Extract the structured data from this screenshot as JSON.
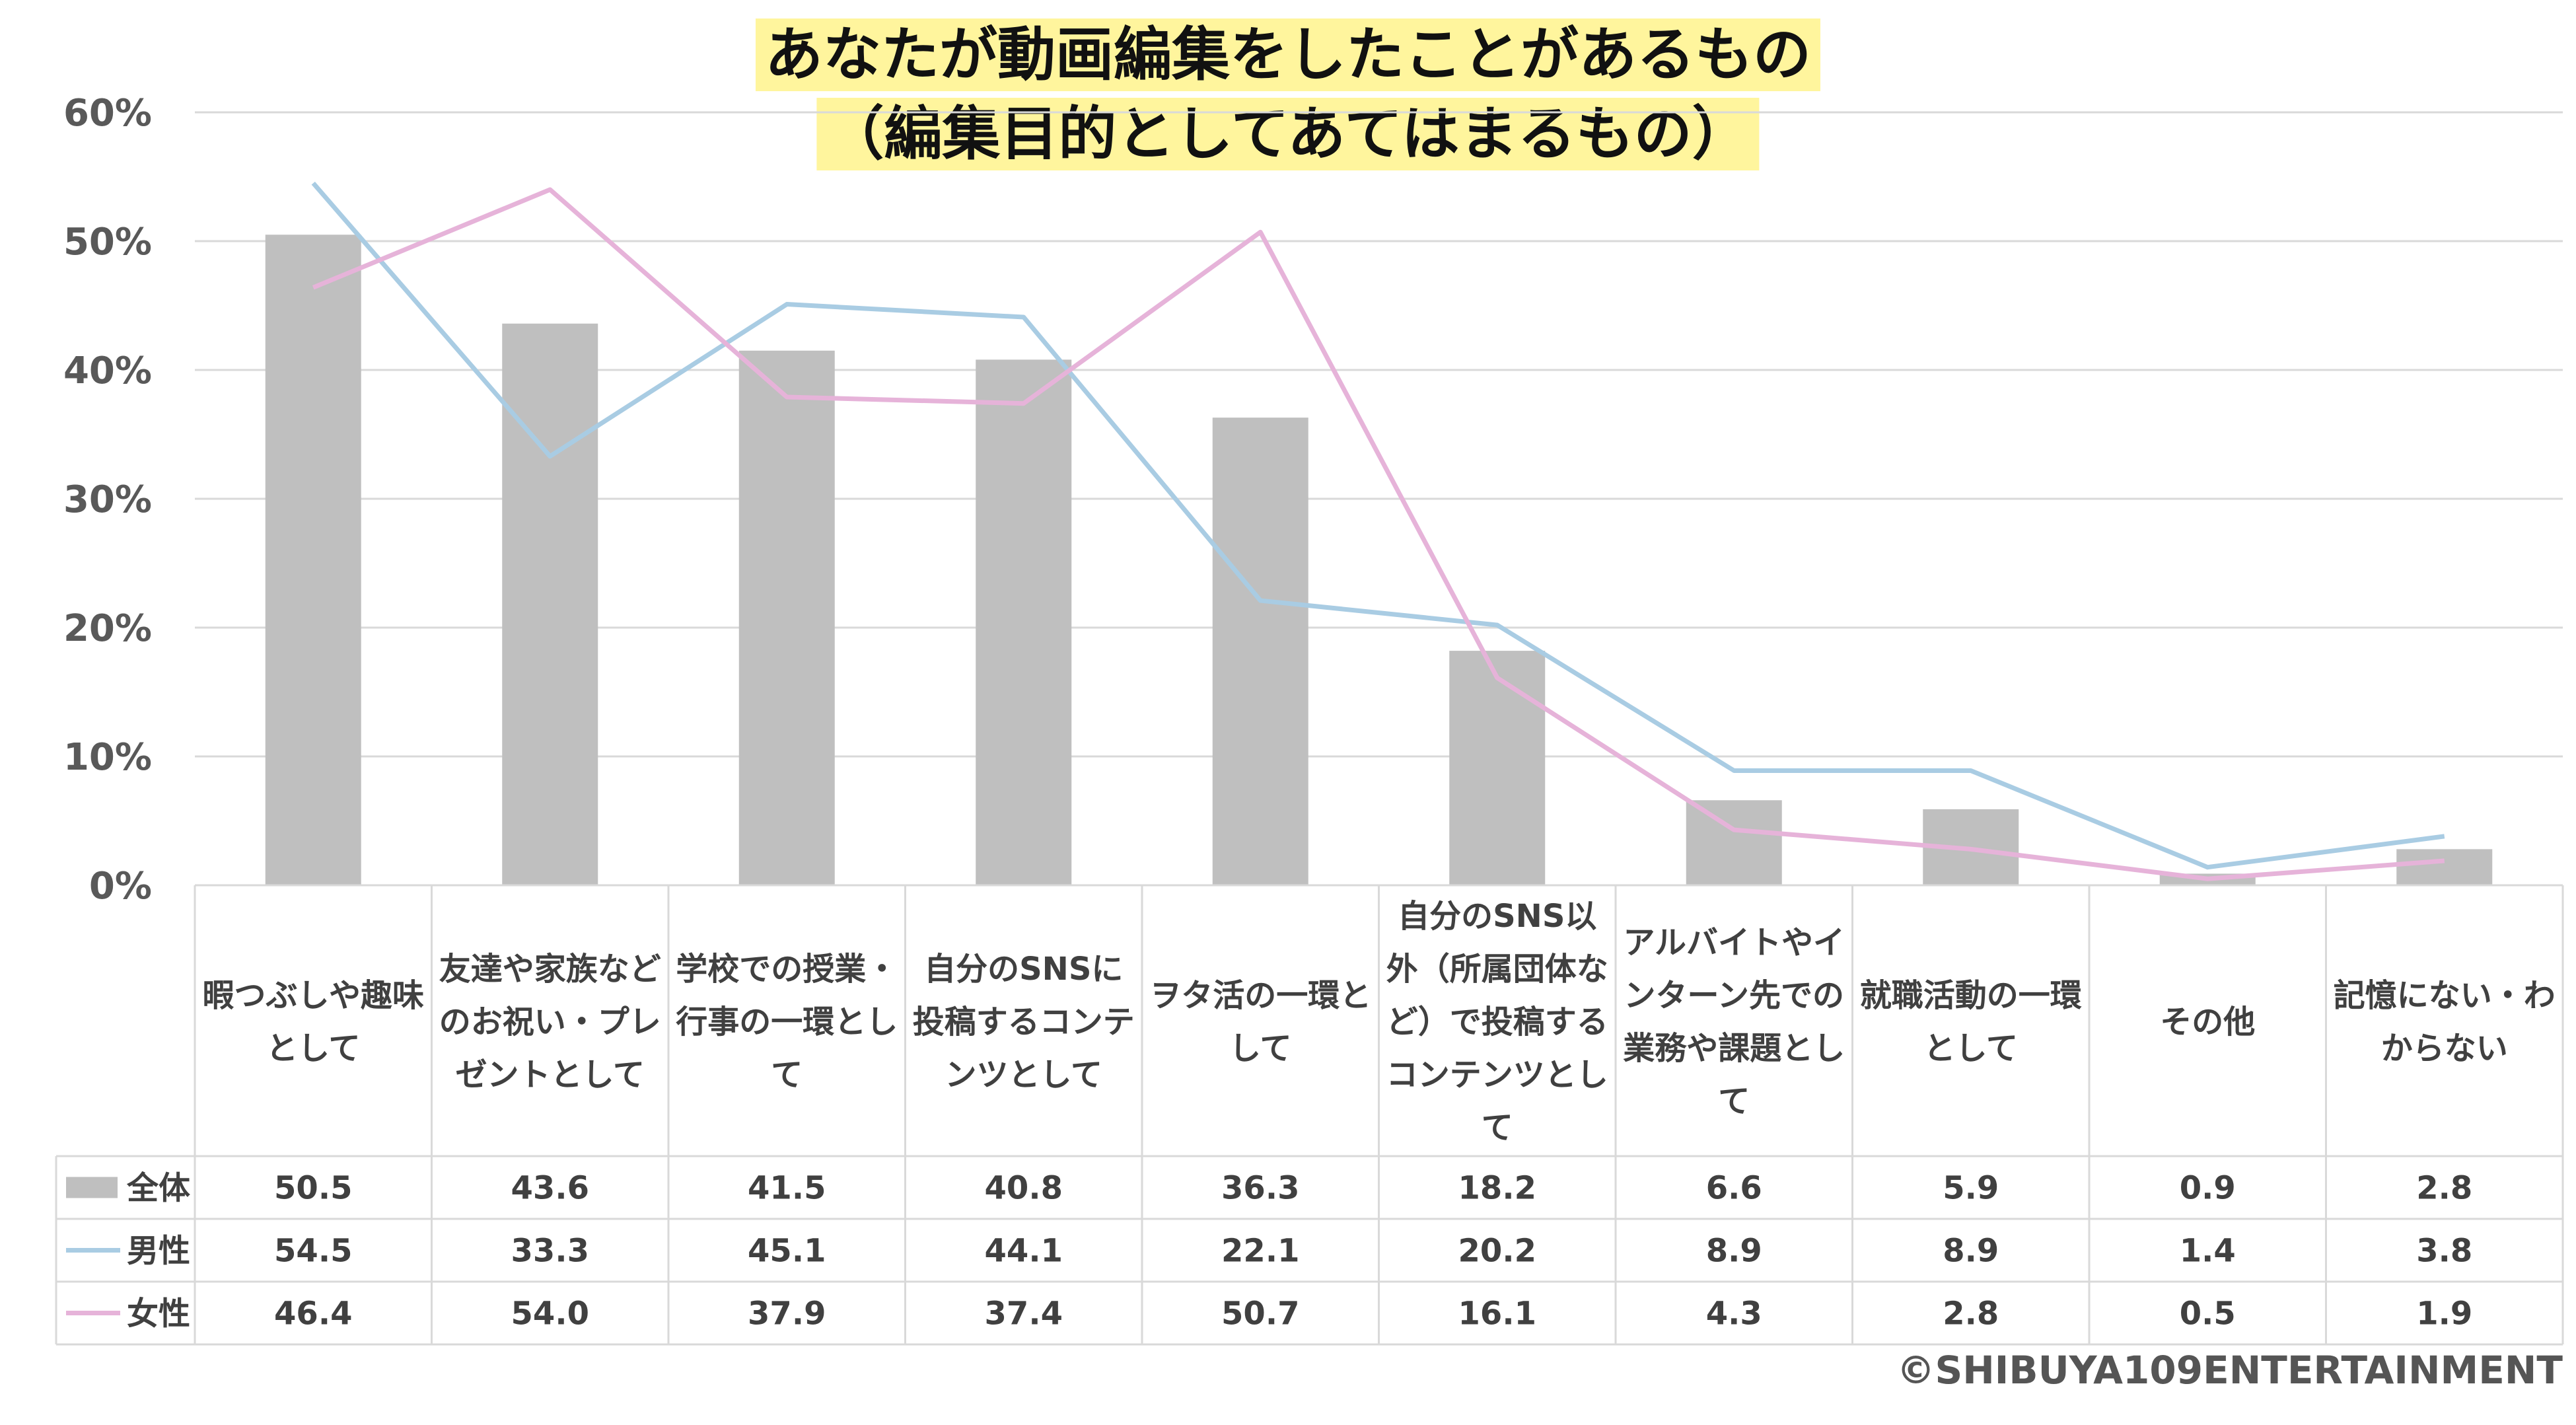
{
  "chart_data": {
    "type": "bar",
    "title": [
      "あなたが動画編集をしたことがあるもの",
      "（編集目的としてあてはまるもの）"
    ],
    "y_ticks": [
      "0%",
      "10%",
      "20%",
      "30%",
      "40%",
      "50%",
      "60%"
    ],
    "ylim": [
      0,
      60
    ],
    "categories": [
      [
        "暇つぶしや趣味",
        "として"
      ],
      [
        "友達や家族など",
        "のお祝い・プレ",
        "ゼントとして"
      ],
      [
        "学校での授業・",
        "行事の一環とし",
        "て"
      ],
      [
        "自分のSNSに",
        "投稿するコンテ",
        "ンツとして"
      ],
      [
        "ヲタ活の一環と",
        "して"
      ],
      [
        "自分のSNS以",
        "外（所属団体な",
        "ど）で投稿する",
        "コンテンツとし",
        "て"
      ],
      [
        "アルバイトやイ",
        "ンターン先での",
        "業務や課題とし",
        "て"
      ],
      [
        "就職活動の一環",
        "として"
      ],
      [
        "その他"
      ],
      [
        "記憶にない・わ",
        "からない"
      ]
    ],
    "series": [
      {
        "name": "全体",
        "type": "bar",
        "color": "#bfbfbf",
        "values": [
          50.5,
          43.6,
          41.5,
          40.8,
          36.3,
          18.2,
          6.6,
          5.9,
          0.9,
          2.8
        ],
        "labels": [
          "50.5",
          "43.6",
          "41.5",
          "40.8",
          "36.3",
          "18.2",
          "6.6",
          "5.9",
          "0.9",
          "2.8"
        ]
      },
      {
        "name": "男性",
        "type": "line",
        "color": "#a9cce3",
        "values": [
          54.5,
          33.3,
          45.1,
          44.1,
          22.1,
          20.2,
          8.9,
          8.9,
          1.4,
          3.8
        ],
        "labels": [
          "54.5",
          "33.3",
          "45.1",
          "44.1",
          "22.1",
          "20.2",
          "8.9",
          "8.9",
          "1.4",
          "3.8"
        ]
      },
      {
        "name": "女性",
        "type": "line",
        "color": "#e6b3d9",
        "values": [
          46.4,
          54.0,
          37.9,
          37.4,
          50.7,
          16.1,
          4.3,
          2.8,
          0.5,
          1.9
        ],
        "labels": [
          "46.4",
          "54.0",
          "37.9",
          "37.4",
          "50.7",
          "16.1",
          "4.3",
          "2.8",
          "0.5",
          "1.9"
        ]
      }
    ]
  },
  "copyright": "©SHIBUYA109ENTERTAINMENT"
}
